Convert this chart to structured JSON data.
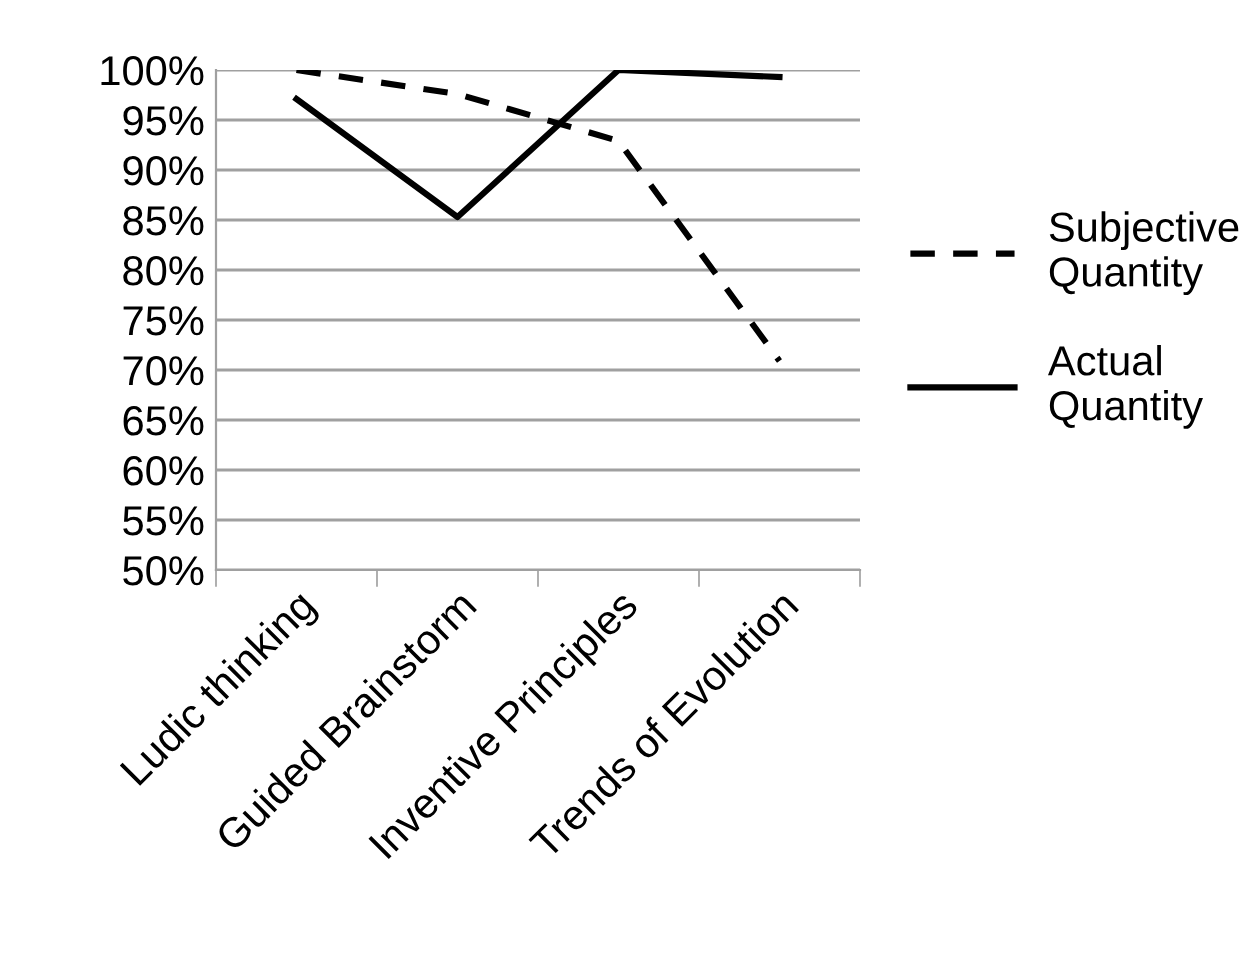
{
  "chart_data": {
    "type": "line",
    "categories": [
      "Ludic thinking",
      "Guided Brainstorm",
      "Inventive Principles",
      "Trends of Evolution"
    ],
    "series": [
      {
        "name": "Subjective Quantity",
        "color": "#000000",
        "line_style": "dashed",
        "values": [
          100,
          97.6,
          92.9,
          70.9
        ]
      },
      {
        "name": "Actual Quantity",
        "color": "#000000",
        "line_style": "solid",
        "values": [
          97.1,
          85.3,
          100,
          99.3
        ]
      }
    ],
    "ylim": [
      50,
      100
    ],
    "yticks": [
      {
        "value": 50,
        "label": "50%"
      },
      {
        "value": 55,
        "label": "55%"
      },
      {
        "value": 60,
        "label": "60%"
      },
      {
        "value": 65,
        "label": "65%"
      },
      {
        "value": 70,
        "label": "70%"
      },
      {
        "value": 75,
        "label": "75%"
      },
      {
        "value": 80,
        "label": "80%"
      },
      {
        "value": 85,
        "label": "85%"
      },
      {
        "value": 90,
        "label": "90%"
      },
      {
        "value": 95,
        "label": "95%"
      },
      {
        "value": 100,
        "label": "100%"
      }
    ],
    "grid": "y",
    "legend": "right",
    "marker": "none"
  }
}
